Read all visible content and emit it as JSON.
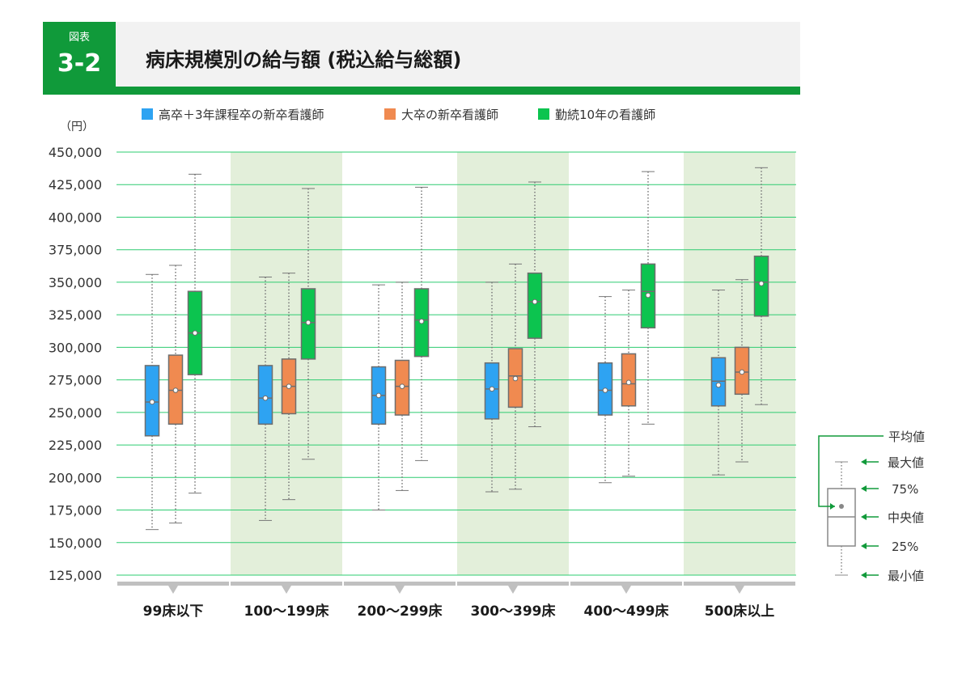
{
  "header": {
    "badge_label": "図表",
    "badge_number": "3-2",
    "title": "病床規模別の給与額 (税込給与総額)"
  },
  "chart_data": {
    "type": "boxplot",
    "y_unit": "（円）",
    "ylim": [
      125000,
      450000
    ],
    "y_ticks": [
      450000,
      425000,
      400000,
      375000,
      350000,
      325000,
      300000,
      275000,
      250000,
      225000,
      200000,
      175000,
      150000,
      125000
    ],
    "y_tick_labels": [
      "450,000",
      "425,000",
      "400,000",
      "375,000",
      "350,000",
      "325,000",
      "300,000",
      "275,000",
      "250,000",
      "225,000",
      "200,000",
      "175,000",
      "150,000",
      "125,000"
    ],
    "categories": [
      "99床以下",
      "100～199床",
      "200～299床",
      "300～399床",
      "400～499床",
      "500床以上"
    ],
    "legend_position": "top",
    "grid": true,
    "series": [
      {
        "name": "高卒＋3年課程卒の新卒看護師",
        "color": "#2ea3f2",
        "data": [
          {
            "min": 160000,
            "q1": 232000,
            "median": 258000,
            "q3": 286000,
            "max": 356000,
            "mean": 258000
          },
          {
            "min": 167000,
            "q1": 241000,
            "median": 261000,
            "q3": 286000,
            "max": 354000,
            "mean": 261000
          },
          {
            "min": 175000,
            "q1": 241000,
            "median": 263000,
            "q3": 285000,
            "max": 348000,
            "mean": 263000
          },
          {
            "min": 189000,
            "q1": 245000,
            "median": 268000,
            "q3": 288000,
            "max": 350000,
            "mean": 268000
          },
          {
            "min": 196000,
            "q1": 248000,
            "median": 267000,
            "q3": 288000,
            "max": 339000,
            "mean": 267000
          },
          {
            "min": 202000,
            "q1": 255000,
            "median": 274000,
            "q3": 292000,
            "max": 344000,
            "mean": 271000
          }
        ]
      },
      {
        "name": "大卒の新卒看護師",
        "color": "#f08a50",
        "data": [
          {
            "min": 165000,
            "q1": 241000,
            "median": 267000,
            "q3": 294000,
            "max": 363000,
            "mean": 267000
          },
          {
            "min": 183000,
            "q1": 249000,
            "median": 270000,
            "q3": 291000,
            "max": 357000,
            "mean": 270000
          },
          {
            "min": 190000,
            "q1": 248000,
            "median": 270000,
            "q3": 290000,
            "max": 350000,
            "mean": 270000
          },
          {
            "min": 191000,
            "q1": 254000,
            "median": 278000,
            "q3": 299000,
            "max": 364000,
            "mean": 276000
          },
          {
            "min": 201000,
            "q1": 255000,
            "median": 272000,
            "q3": 295000,
            "max": 344000,
            "mean": 273000
          },
          {
            "min": 212000,
            "q1": 264000,
            "median": 281000,
            "q3": 300000,
            "max": 352000,
            "mean": 281000
          }
        ]
      },
      {
        "name": "勤続10年の看護師",
        "color": "#0cc44f",
        "data": [
          {
            "min": 188000,
            "q1": 279000,
            "median": 311000,
            "q3": 343000,
            "max": 433000,
            "mean": 311000
          },
          {
            "min": 214000,
            "q1": 291000,
            "median": 319000,
            "q3": 345000,
            "max": 422000,
            "mean": 319000
          },
          {
            "min": 213000,
            "q1": 293000,
            "median": 321000,
            "q3": 345000,
            "max": 423000,
            "mean": 320000
          },
          {
            "min": 239000,
            "q1": 307000,
            "median": 335000,
            "q3": 357000,
            "max": 427000,
            "mean": 335000
          },
          {
            "min": 241000,
            "q1": 315000,
            "median": 343000,
            "q3": 364000,
            "max": 435000,
            "mean": 340000
          },
          {
            "min": 256000,
            "q1": 324000,
            "median": 350000,
            "q3": 370000,
            "max": 438000,
            "mean": 349000
          }
        ]
      }
    ]
  },
  "key": {
    "mean": "平均値",
    "max": "最大値",
    "q3": "75%",
    "median": "中央値",
    "q1": "25%",
    "min": "最小値"
  }
}
